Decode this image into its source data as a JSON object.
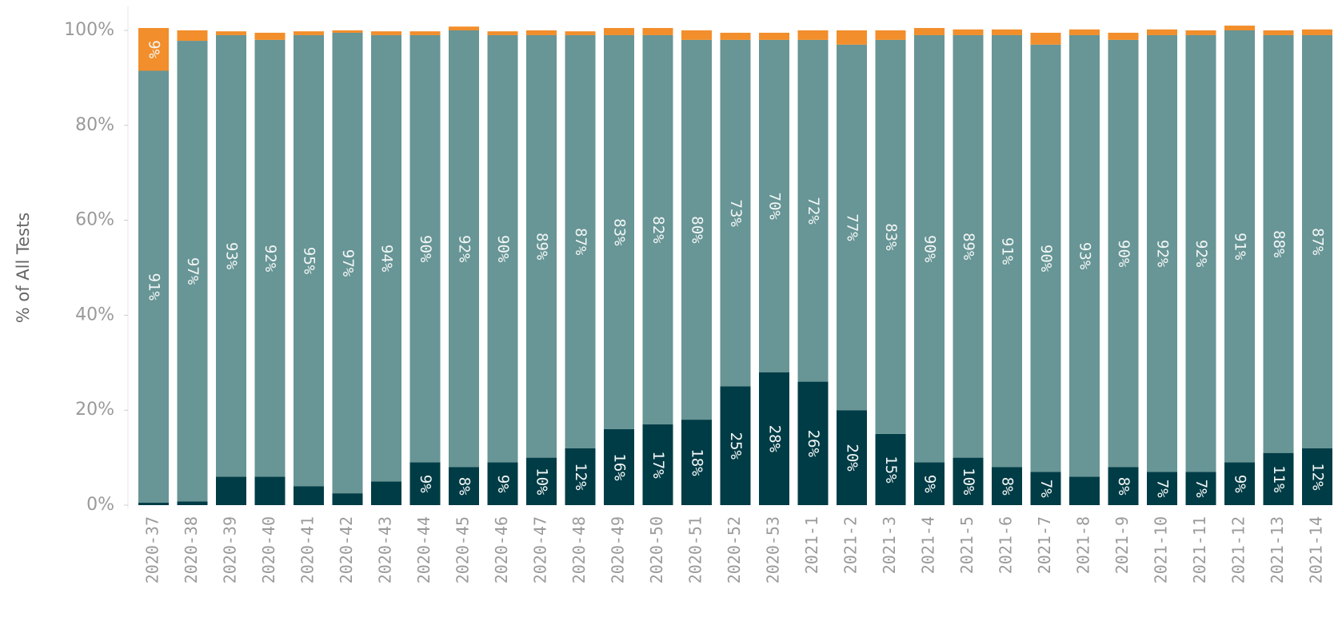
{
  "chart_data": {
    "type": "bar",
    "stacked": true,
    "y_label": "% of All Tests",
    "categories": [
      "2020-37",
      "2020-38",
      "2020-39",
      "2020-40",
      "2020-41",
      "2020-42",
      "2020-43",
      "2020-44",
      "2020-45",
      "2020-46",
      "2020-47",
      "2020-48",
      "2020-49",
      "2020-50",
      "2020-51",
      "2020-52",
      "2020-53",
      "2021-1",
      "2021-2",
      "2021-3",
      "2021-4",
      "2021-5",
      "2021-6",
      "2021-7",
      "2021-8",
      "2021-9",
      "2021-10",
      "2021-11",
      "2021-12",
      "2021-13",
      "2021-14"
    ],
    "series": [
      {
        "color": "#003c46",
        "values": [
          0.5,
          0.8,
          6,
          6,
          4,
          2.5,
          5,
          9,
          8,
          9,
          10,
          12,
          16,
          17,
          18,
          25,
          28,
          26,
          20,
          15,
          9,
          10,
          8,
          7,
          6,
          8,
          7,
          7,
          9,
          11,
          12
        ],
        "value_labels": [
          null,
          null,
          null,
          null,
          null,
          null,
          null,
          "9%",
          "8%",
          "9%",
          "10%",
          "12%",
          "16%",
          "17%",
          "18%",
          "25%",
          "28%",
          "26%",
          "20%",
          "15%",
          "9%",
          "10%",
          "8%",
          "7%",
          null,
          "8%",
          "7%",
          "7%",
          "9%",
          "11%",
          "12%"
        ]
      },
      {
        "color": "#689595",
        "values": [
          91,
          97,
          93,
          92,
          95,
          97,
          94,
          90,
          92,
          90,
          89,
          87,
          83,
          82,
          80,
          73,
          70,
          72,
          77,
          83,
          90,
          89,
          91,
          90,
          93,
          90,
          92,
          92,
          91,
          88,
          87
        ],
        "value_labels": [
          "91%",
          "97%",
          "93%",
          "92%",
          "95%",
          "97%",
          "94%",
          "90%",
          "92%",
          "90%",
          "89%",
          "87%",
          "83%",
          "82%",
          "80%",
          "73%",
          "70%",
          "72%",
          "77%",
          "83%",
          "90%",
          "89%",
          "91%",
          "90%",
          "93%",
          "90%",
          "92%",
          "92%",
          "91%",
          "88%",
          "87%"
        ]
      },
      {
        "color": "#f28e2b",
        "values": [
          9,
          2.2,
          0.8,
          1.5,
          0.8,
          0.5,
          0.8,
          0.8,
          0.8,
          0.8,
          1,
          0.8,
          1.5,
          1.5,
          2,
          1.5,
          1.5,
          2,
          3,
          2,
          1.5,
          1.2,
          1.2,
          2.5,
          1.2,
          1.5,
          1.2,
          1,
          1,
          1,
          1.2
        ],
        "value_labels": [
          "9%",
          null,
          null,
          null,
          null,
          null,
          null,
          null,
          null,
          null,
          null,
          null,
          null,
          null,
          null,
          null,
          null,
          null,
          null,
          null,
          null,
          null,
          null,
          null,
          null,
          null,
          null,
          null,
          null,
          null,
          null
        ]
      }
    ],
    "ylim": [
      0,
      100
    ],
    "yticks": [
      {
        "value": 0,
        "label": "0%"
      },
      {
        "value": 20,
        "label": "20%"
      },
      {
        "value": 40,
        "label": "40%"
      },
      {
        "value": 60,
        "label": "60%"
      },
      {
        "value": 80,
        "label": "80%"
      },
      {
        "value": 100,
        "label": "100%"
      }
    ],
    "grid": false
  }
}
